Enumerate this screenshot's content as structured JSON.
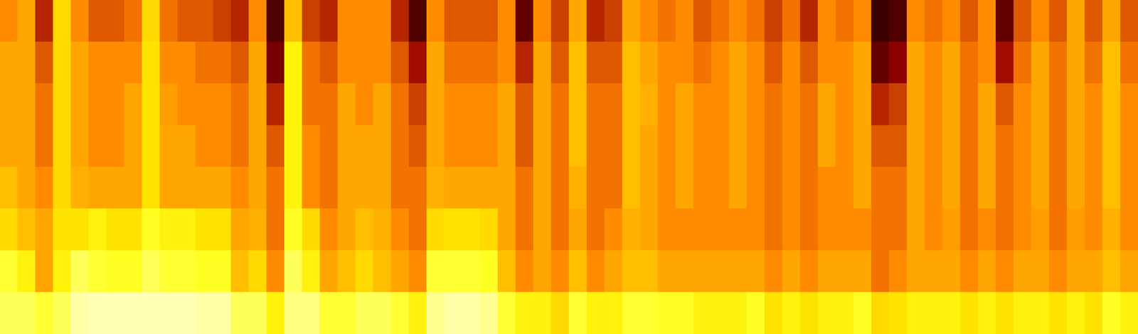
{
  "chart_data": {
    "type": "heatmap",
    "tick_labels": false,
    "clim": [
      0,
      1
    ],
    "cells": [
      [
        0.55,
        0.6,
        0.6,
        0.6,
        0.65,
        0.7,
        0.8,
        0.85
      ],
      [
        0.6,
        0.6,
        0.6,
        0.6,
        0.6,
        0.65,
        0.75,
        0.85
      ],
      [
        0.35,
        0.45,
        0.5,
        0.5,
        0.55,
        0.6,
        0.6,
        0.8
      ],
      [
        0.7,
        0.7,
        0.7,
        0.7,
        0.7,
        0.72,
        0.75,
        0.85
      ],
      [
        0.55,
        0.6,
        0.6,
        0.6,
        0.62,
        0.72,
        0.85,
        0.95
      ],
      [
        0.45,
        0.55,
        0.55,
        0.55,
        0.6,
        0.75,
        0.8,
        0.97
      ],
      [
        0.45,
        0.55,
        0.55,
        0.55,
        0.6,
        0.72,
        0.78,
        0.97
      ],
      [
        0.5,
        0.55,
        0.6,
        0.6,
        0.6,
        0.72,
        0.78,
        0.97
      ],
      [
        0.7,
        0.72,
        0.72,
        0.72,
        0.72,
        0.78,
        0.85,
        0.97
      ],
      [
        0.5,
        0.55,
        0.58,
        0.6,
        0.6,
        0.75,
        0.8,
        0.97
      ],
      [
        0.45,
        0.55,
        0.55,
        0.6,
        0.6,
        0.75,
        0.8,
        0.97
      ],
      [
        0.45,
        0.5,
        0.55,
        0.55,
        0.6,
        0.72,
        0.78,
        0.95
      ],
      [
        0.4,
        0.5,
        0.55,
        0.55,
        0.6,
        0.72,
        0.78,
        0.95
      ],
      [
        0.35,
        0.45,
        0.5,
        0.5,
        0.55,
        0.6,
        0.65,
        0.85
      ],
      [
        0.55,
        0.6,
        0.6,
        0.6,
        0.6,
        0.62,
        0.7,
        0.85
      ],
      [
        0.1,
        0.2,
        0.35,
        0.45,
        0.5,
        0.5,
        0.55,
        0.75
      ],
      [
        0.65,
        0.75,
        0.75,
        0.75,
        0.75,
        0.78,
        0.85,
        0.9
      ],
      [
        0.4,
        0.5,
        0.5,
        0.55,
        0.55,
        0.7,
        0.75,
        0.9
      ],
      [
        0.35,
        0.45,
        0.5,
        0.5,
        0.5,
        0.55,
        0.6,
        0.8
      ],
      [
        0.55,
        0.55,
        0.6,
        0.6,
        0.6,
        0.6,
        0.65,
        0.8
      ],
      [
        0.55,
        0.55,
        0.55,
        0.6,
        0.6,
        0.65,
        0.7,
        0.85
      ],
      [
        0.55,
        0.55,
        0.6,
        0.6,
        0.6,
        0.62,
        0.65,
        0.85
      ],
      [
        0.35,
        0.45,
        0.5,
        0.5,
        0.5,
        0.55,
        0.6,
        0.8
      ],
      [
        0.1,
        0.3,
        0.4,
        0.45,
        0.5,
        0.5,
        0.55,
        0.75
      ],
      [
        0.55,
        0.6,
        0.6,
        0.6,
        0.62,
        0.7,
        0.8,
        0.92
      ],
      [
        0.45,
        0.5,
        0.55,
        0.55,
        0.6,
        0.72,
        0.8,
        0.95
      ],
      [
        0.45,
        0.5,
        0.55,
        0.55,
        0.6,
        0.72,
        0.8,
        0.95
      ],
      [
        0.45,
        0.5,
        0.55,
        0.55,
        0.6,
        0.7,
        0.78,
        0.92
      ],
      [
        0.55,
        0.55,
        0.6,
        0.6,
        0.6,
        0.6,
        0.65,
        0.8
      ],
      [
        0.15,
        0.35,
        0.45,
        0.45,
        0.5,
        0.5,
        0.55,
        0.75
      ],
      [
        0.55,
        0.6,
        0.6,
        0.6,
        0.6,
        0.6,
        0.6,
        0.75
      ],
      [
        0.4,
        0.45,
        0.5,
        0.5,
        0.5,
        0.5,
        0.55,
        0.7
      ],
      [
        0.6,
        0.65,
        0.65,
        0.65,
        0.62,
        0.6,
        0.65,
        0.8
      ],
      [
        0.35,
        0.45,
        0.5,
        0.5,
        0.5,
        0.5,
        0.55,
        0.75
      ],
      [
        0.4,
        0.45,
        0.5,
        0.5,
        0.5,
        0.55,
        0.6,
        0.75
      ],
      [
        0.6,
        0.65,
        0.65,
        0.65,
        0.65,
        0.62,
        0.65,
        0.8
      ],
      [
        0.55,
        0.6,
        0.62,
        0.6,
        0.6,
        0.6,
        0.65,
        0.8
      ],
      [
        0.5,
        0.55,
        0.55,
        0.55,
        0.55,
        0.55,
        0.6,
        0.78
      ],
      [
        0.55,
        0.55,
        0.6,
        0.6,
        0.6,
        0.55,
        0.6,
        0.78
      ],
      [
        0.45,
        0.5,
        0.55,
        0.55,
        0.55,
        0.55,
        0.6,
        0.75
      ],
      [
        0.5,
        0.55,
        0.55,
        0.55,
        0.55,
        0.55,
        0.6,
        0.75
      ],
      [
        0.55,
        0.6,
        0.6,
        0.6,
        0.6,
        0.55,
        0.6,
        0.75
      ],
      [
        0.5,
        0.55,
        0.55,
        0.55,
        0.55,
        0.55,
        0.6,
        0.78
      ],
      [
        0.4,
        0.45,
        0.5,
        0.5,
        0.5,
        0.5,
        0.55,
        0.72
      ],
      [
        0.5,
        0.55,
        0.55,
        0.55,
        0.55,
        0.55,
        0.6,
        0.75
      ],
      [
        0.35,
        0.45,
        0.5,
        0.5,
        0.5,
        0.5,
        0.55,
        0.72
      ],
      [
        0.55,
        0.55,
        0.6,
        0.6,
        0.55,
        0.55,
        0.6,
        0.75
      ],
      [
        0.5,
        0.55,
        0.55,
        0.55,
        0.55,
        0.55,
        0.6,
        0.75
      ],
      [
        0.55,
        0.6,
        0.6,
        0.6,
        0.6,
        0.55,
        0.6,
        0.78
      ],
      [
        0.05,
        0.15,
        0.35,
        0.45,
        0.5,
        0.5,
        0.5,
        0.7
      ],
      [
        0.1,
        0.25,
        0.4,
        0.45,
        0.5,
        0.5,
        0.55,
        0.72
      ],
      [
        0.55,
        0.6,
        0.6,
        0.6,
        0.6,
        0.6,
        0.6,
        0.75
      ],
      [
        0.5,
        0.55,
        0.55,
        0.55,
        0.55,
        0.55,
        0.6,
        0.75
      ],
      [
        0.55,
        0.6,
        0.6,
        0.6,
        0.6,
        0.58,
        0.6,
        0.75
      ],
      [
        0.45,
        0.5,
        0.5,
        0.5,
        0.5,
        0.5,
        0.55,
        0.72
      ],
      [
        0.55,
        0.55,
        0.6,
        0.6,
        0.6,
        0.55,
        0.6,
        0.75
      ],
      [
        0.15,
        0.3,
        0.45,
        0.5,
        0.5,
        0.5,
        0.55,
        0.72
      ],
      [
        0.45,
        0.5,
        0.55,
        0.55,
        0.55,
        0.55,
        0.6,
        0.75
      ],
      [
        0.55,
        0.6,
        0.6,
        0.6,
        0.6,
        0.58,
        0.6,
        0.75
      ],
      [
        0.45,
        0.5,
        0.5,
        0.5,
        0.5,
        0.5,
        0.55,
        0.72
      ],
      [
        0.6,
        0.6,
        0.6,
        0.6,
        0.6,
        0.58,
        0.6,
        0.75
      ],
      [
        0.45,
        0.5,
        0.55,
        0.55,
        0.55,
        0.55,
        0.6,
        0.72
      ],
      [
        0.6,
        0.65,
        0.65,
        0.65,
        0.65,
        0.62,
        0.65,
        0.78
      ],
      [
        0.45,
        0.5,
        0.55,
        0.55,
        0.55,
        0.55,
        0.6,
        0.75
      ]
    ]
  }
}
